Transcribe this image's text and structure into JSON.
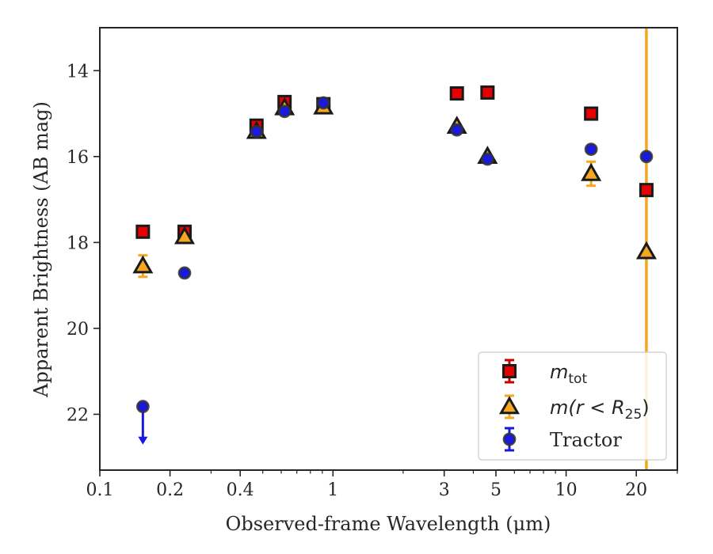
{
  "chart_data": {
    "type": "scatter",
    "xlabel": "Observed-frame Wavelength (μm)",
    "ylabel": "Apparent Brightness (AB mag)",
    "x_scale": "log",
    "y_inverted": true,
    "xlim": [
      0.1,
      30
    ],
    "ylim": [
      23.3,
      13.0
    ],
    "x_ticks": [
      {
        "value": 0.1,
        "label": "0.1"
      },
      {
        "value": 0.2,
        "label": "0.2"
      },
      {
        "value": 0.4,
        "label": "0.4"
      },
      {
        "value": 1,
        "label": "1"
      },
      {
        "value": 3,
        "label": "3"
      },
      {
        "value": 5,
        "label": "5"
      },
      {
        "value": 10,
        "label": "10"
      },
      {
        "value": 20,
        "label": "20"
      }
    ],
    "y_ticks": [
      {
        "value": 14,
        "label": "14"
      },
      {
        "value": 16,
        "label": "16"
      },
      {
        "value": 18,
        "label": "18"
      },
      {
        "value": 20,
        "label": "20"
      },
      {
        "value": 22,
        "label": "22"
      }
    ],
    "grid": false,
    "legend_placement": "lower-right",
    "vertical_line": {
      "x": 22.1,
      "color": "#f5a623"
    },
    "series": [
      {
        "name": "m_tot",
        "legend_label": "m",
        "legend_sub": "tot",
        "marker": "square",
        "color": "#e60000",
        "errcolor": "#cc0000",
        "points": [
          {
            "x": 0.153,
            "y": 17.75
          },
          {
            "x": 0.231,
            "y": 17.75
          },
          {
            "x": 0.47,
            "y": 15.28
          },
          {
            "x": 0.62,
            "y": 14.73
          },
          {
            "x": 0.91,
            "y": 14.78
          },
          {
            "x": 3.4,
            "y": 14.53
          },
          {
            "x": 4.6,
            "y": 14.51
          },
          {
            "x": 12.8,
            "y": 15.0
          },
          {
            "x": 22.1,
            "y": 16.78
          }
        ]
      },
      {
        "name": "m(r < R25)",
        "legend_label": "m(r < R",
        "legend_sub": "25",
        "legend_close": ")",
        "marker": "triangle",
        "color": "#f5a623",
        "errcolor": "#f5a623",
        "points": [
          {
            "x": 0.153,
            "y": 18.55,
            "err": 0.25
          },
          {
            "x": 0.231,
            "y": 17.87
          },
          {
            "x": 0.47,
            "y": 15.42
          },
          {
            "x": 0.62,
            "y": 14.87
          },
          {
            "x": 0.91,
            "y": 14.85
          },
          {
            "x": 3.4,
            "y": 15.3
          },
          {
            "x": 4.6,
            "y": 16.0
          },
          {
            "x": 12.8,
            "y": 16.4,
            "err": 0.28
          },
          {
            "x": 22.1,
            "y": 18.22
          }
        ]
      },
      {
        "name": "Tractor",
        "legend_label": "Tractor",
        "marker": "circle",
        "color": "#1a1adf",
        "errcolor": "#1a1adf",
        "points": [
          {
            "x": 0.153,
            "y": 21.82,
            "upper_limit": true
          },
          {
            "x": 0.231,
            "y": 18.71
          },
          {
            "x": 0.47,
            "y": 15.42
          },
          {
            "x": 0.62,
            "y": 14.95
          },
          {
            "x": 0.91,
            "y": 14.75
          },
          {
            "x": 3.4,
            "y": 15.38
          },
          {
            "x": 4.6,
            "y": 16.06
          },
          {
            "x": 12.8,
            "y": 15.83
          },
          {
            "x": 22.1,
            "y": 16.0
          }
        ]
      }
    ]
  }
}
